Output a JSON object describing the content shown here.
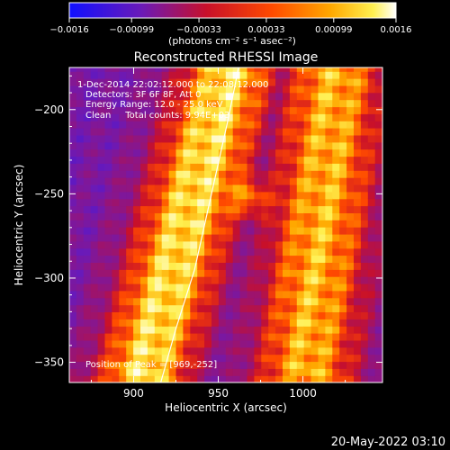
{
  "chart_data": {
    "type": "heatmap",
    "title": "Reconstructed RHESSI Image",
    "xlabel": "Heliocentric X (arcsec)",
    "ylabel": "Heliocentric Y (arcsec)",
    "xlim": [
      862,
      1047
    ],
    "ylim": [
      -362,
      -175
    ],
    "x_ticks": [
      900,
      950,
      1000
    ],
    "x_tick_labels": [
      "900",
      "950",
      "1000"
    ],
    "y_ticks": [
      -200,
      -250,
      -300,
      -350
    ],
    "y_tick_labels": [
      "−200",
      "−250",
      "−300",
      "−350"
    ],
    "colorbar": {
      "range": [
        -0.0016,
        0.0016
      ],
      "ticks": [
        -0.0016,
        -0.00099,
        -0.00033,
        0.00033,
        0.00099,
        0.0016
      ],
      "tick_labels": [
        "−0.0016",
        "−0.00099",
        "−0.00033",
        "0.00033",
        "0.00099",
        "0.0016"
      ],
      "unit_label": "(photons cm⁻² s⁻¹ asec⁻²)",
      "colormap": "thermal (blue-purple-red-orange-yellow-white)"
    },
    "annotations": [
      "1-Dec-2014 22:02:12.000 to 22:08:12.000",
      "Detectors: 3F 6F 8F, Att 0",
      "Energy Range: 12.0 - 25.0 keV",
      "Clean     Total counts: 9.94E+03"
    ],
    "peak_label": "Position of Peak = [969,-252]",
    "limb_curve": [
      [
        916,
        -362
      ],
      [
        925,
        -330
      ],
      [
        936,
        -295
      ],
      [
        946,
        -250
      ],
      [
        956,
        -205
      ],
      [
        962,
        -175
      ]
    ],
    "grid": false
  },
  "footer": {
    "timestamp": "20-May-2022 03:10"
  }
}
